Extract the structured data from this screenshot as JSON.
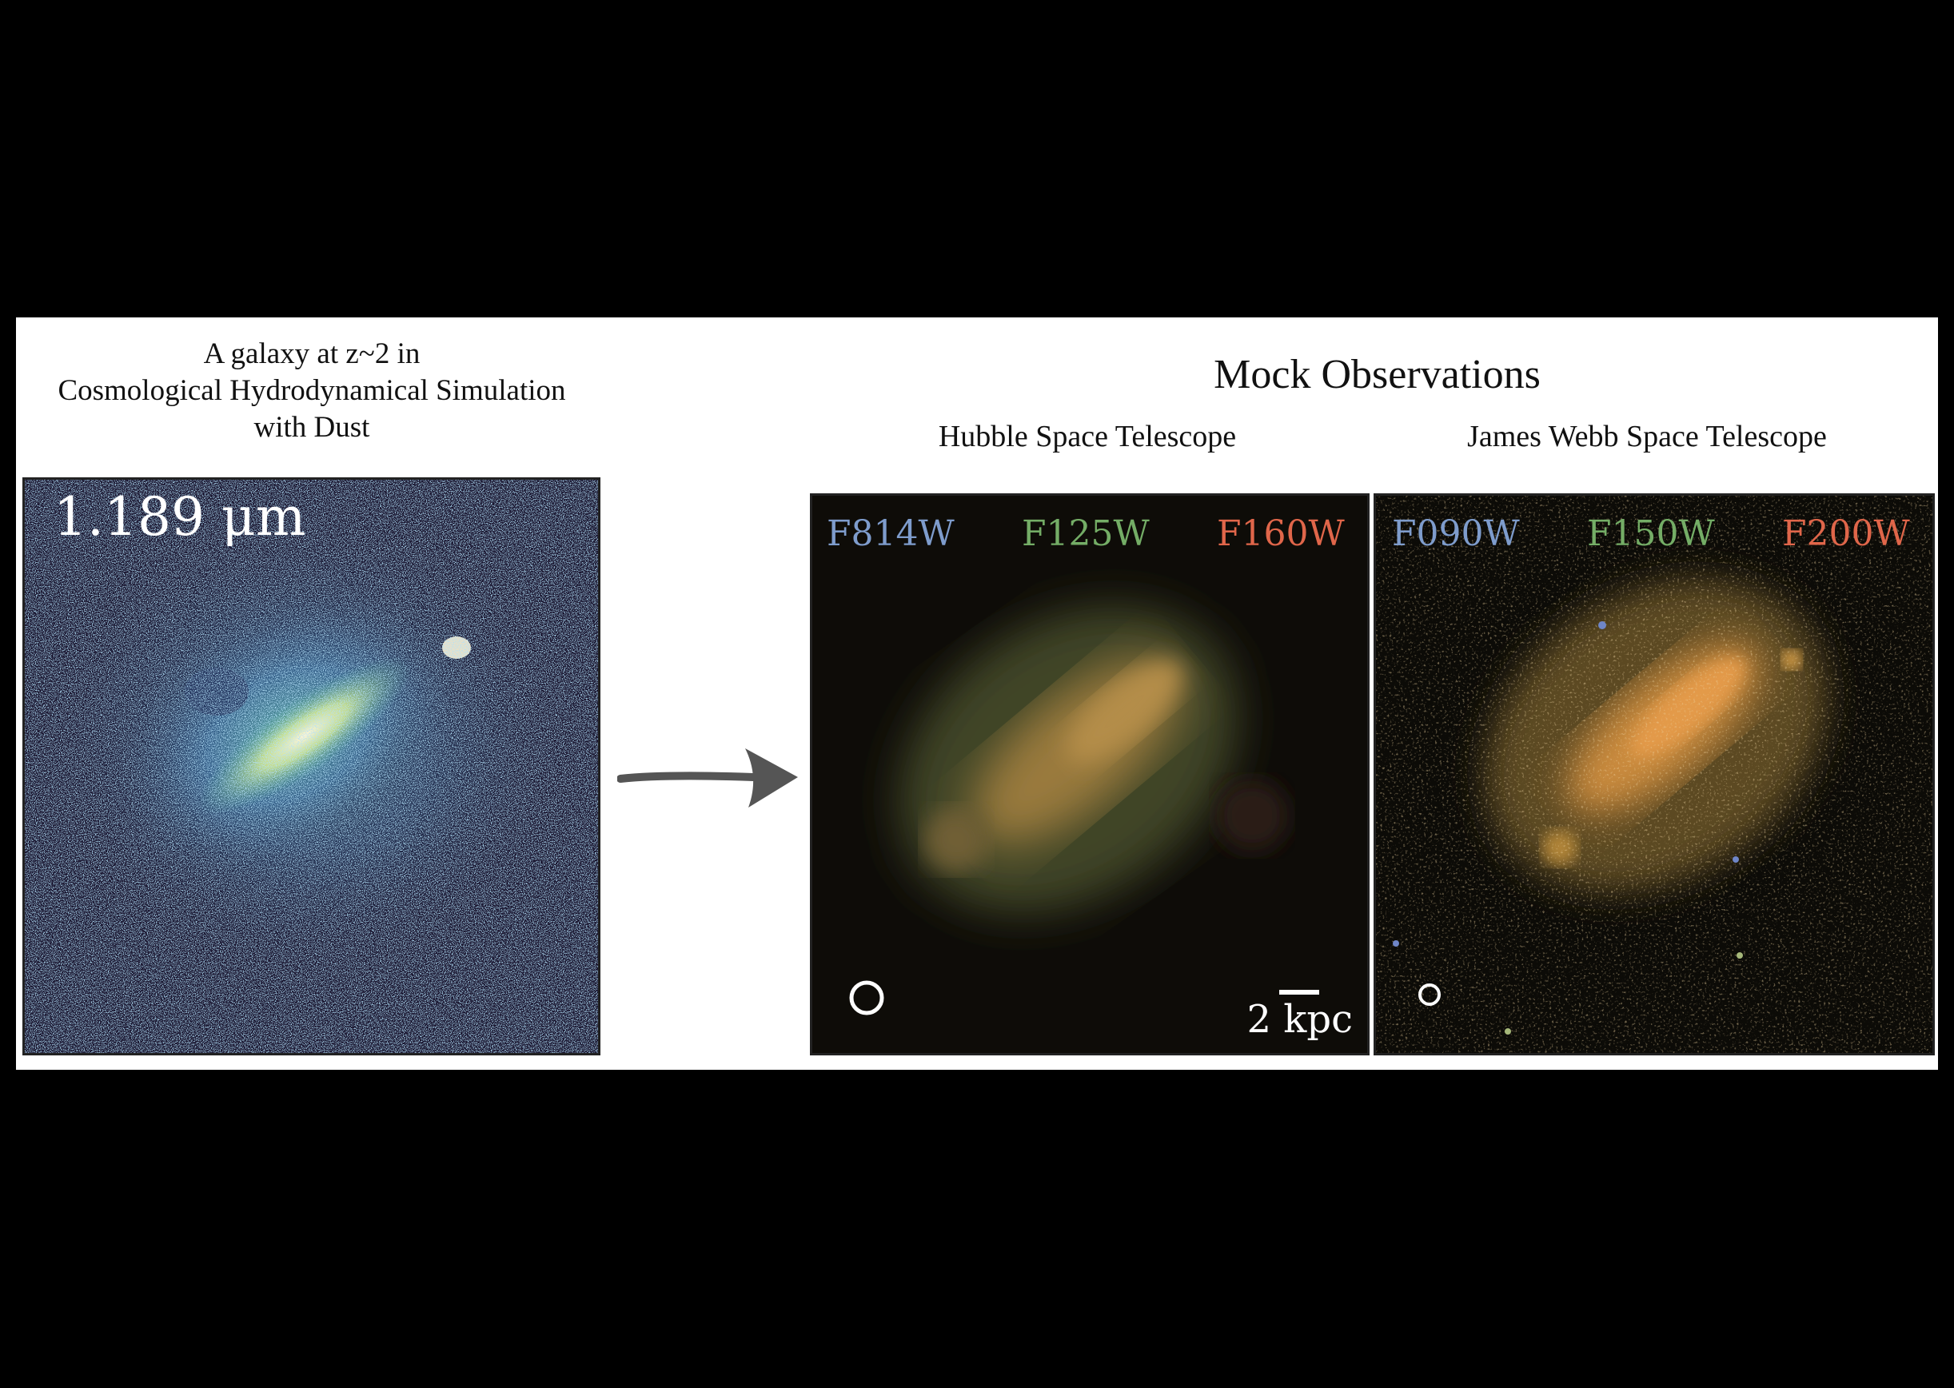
{
  "simulation": {
    "caption_lines": [
      "A galaxy at z~2 in",
      "Cosmological Hydrodynamical Simulation",
      "with Dust"
    ],
    "wavelength_label": "1.189 μm"
  },
  "mock": {
    "title": "Mock Observations",
    "hst": {
      "heading": "Hubble Space Telescope",
      "filters": [
        {
          "name": "F814W",
          "color": "#7e9ccc"
        },
        {
          "name": "F125W",
          "color": "#74ad66"
        },
        {
          "name": "F160W",
          "color": "#e0664a"
        }
      ],
      "scale_label": "2 kpc"
    },
    "jwst": {
      "heading": "James Webb Space Telescope",
      "filters": [
        {
          "name": "F090W",
          "color": "#7e9ccc"
        },
        {
          "name": "F150W",
          "color": "#74ad66"
        },
        {
          "name": "F200W",
          "color": "#e0664a"
        }
      ]
    }
  },
  "arrow_icon": "right-arrow-icon"
}
